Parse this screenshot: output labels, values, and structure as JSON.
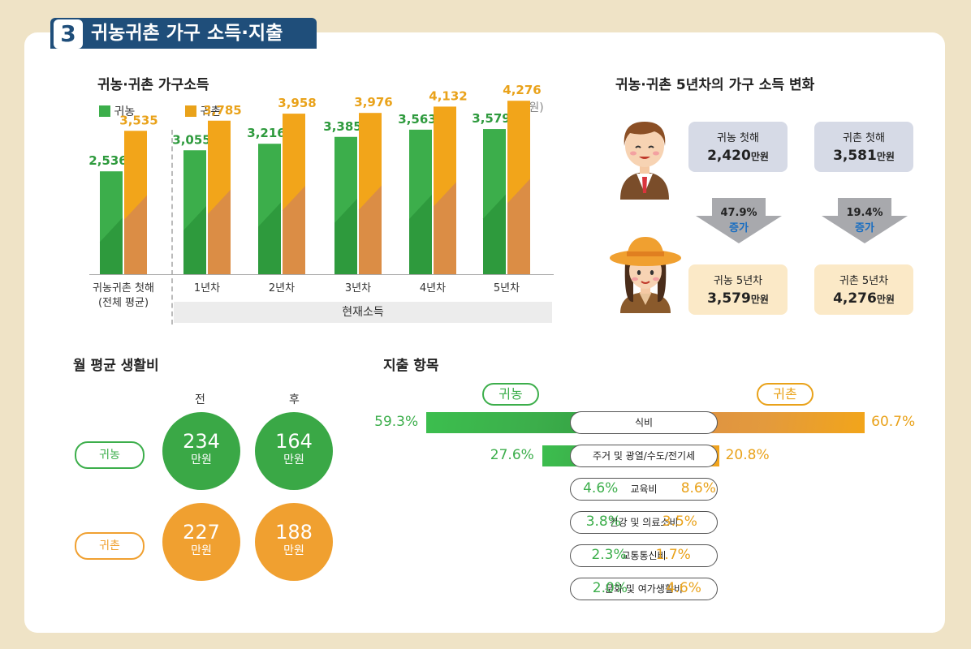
{
  "header": {
    "number": "3",
    "title": "귀농귀촌 가구 소득·지출"
  },
  "income_chart": {
    "title": "귀농·귀촌 가구소득",
    "unit": "(만원)",
    "legend": [
      {
        "label": "귀농",
        "color": "#3cae4b"
      },
      {
        "label": "귀촌",
        "color": "#e9a21a"
      }
    ],
    "current_label": "현재소득"
  },
  "chart_data": {
    "type": "bar",
    "categories": [
      "귀농귀촌 첫해\n(전체 평균)",
      "1년차",
      "2년차",
      "3년차",
      "4년차",
      "5년차"
    ],
    "series": [
      {
        "name": "귀농",
        "values": [
          2536,
          3055,
          3216,
          3385,
          3563,
          3579
        ],
        "labels": [
          "2,536",
          "3,055",
          "3,216",
          "3,385",
          "3,563",
          "3,579"
        ]
      },
      {
        "name": "귀촌",
        "values": [
          3535,
          3785,
          3958,
          3976,
          4132,
          4276
        ],
        "labels": [
          "3,535",
          "3,785",
          "3,958",
          "3,976",
          "4,132",
          "4,276"
        ]
      }
    ],
    "ylim": [
      0,
      4600
    ]
  },
  "change": {
    "title": "귀농·귀촌 5년차의 가구 소득 변화",
    "farm_first_label": "귀농 첫해",
    "farm_first_value": "2,420",
    "unit": "만원",
    "rural_first_label": "귀촌 첫해",
    "rural_first_value": "3,581",
    "farm_rate": "47.9%",
    "rural_rate": "19.4%",
    "increase": "증가",
    "farm_5_label": "귀농 5년차",
    "farm_5_value": "3,579",
    "rural_5_label": "귀촌 5년차",
    "rural_5_value": "4,276"
  },
  "living": {
    "title": "월 평균 생활비",
    "before": "전",
    "after": "후",
    "unit": "만원",
    "rows": [
      {
        "label": "귀농",
        "before": "234",
        "after": "164",
        "color": "#3cae4b"
      },
      {
        "label": "귀촌",
        "before": "227",
        "after": "188",
        "color": "#f0a030"
      }
    ]
  },
  "expense": {
    "title": "지출 항목",
    "left_label": "귀농",
    "right_label": "귀촌",
    "items": [
      {
        "name": "식비",
        "farm": "59.3%",
        "rural": "60.7%",
        "farm_value": 59.3,
        "rural_value": 60.7
      },
      {
        "name": "주거 및 광열/수도/전기세",
        "farm": "27.6%",
        "rural": "20.8%",
        "farm_value": 27.6,
        "rural_value": 20.8
      },
      {
        "name": "교육비",
        "farm": "4.6%",
        "rural": "8.6%",
        "farm_value": 4.6,
        "rural_value": 8.6
      },
      {
        "name": "건강 및 의료소비",
        "farm": "3.8%",
        "rural": "3.5%",
        "farm_value": 3.8,
        "rural_value": 3.5
      },
      {
        "name": "교통통신비",
        "farm": "2.3%",
        "rural": "1.7%",
        "farm_value": 2.3,
        "rural_value": 1.7
      },
      {
        "name": "문화 및 여가생활비",
        "farm": "2.0%",
        "rural": "4.6%",
        "farm_value": 2.0,
        "rural_value": 4.6
      }
    ]
  }
}
